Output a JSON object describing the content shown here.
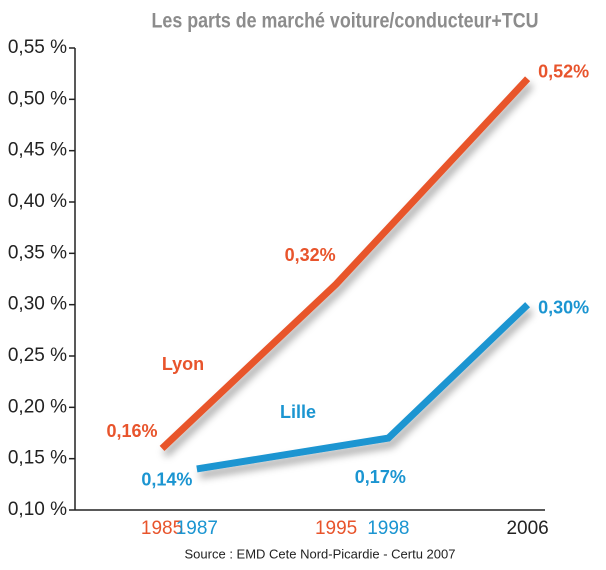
{
  "chart_data": {
    "type": "line",
    "title": "Les parts de marché voiture/conducteur+TCU",
    "source": "Source : EMD Cete Nord-Picardie - Certu 2007",
    "series": [
      {
        "name": "Lyon",
        "color": "#e8542c",
        "x": [
          1985,
          1995,
          2006
        ],
        "values": [
          0.16,
          0.32,
          0.52
        ],
        "value_labels": [
          "0,16%",
          "0,32%",
          "0,52%"
        ]
      },
      {
        "name": "Lille",
        "color": "#1b95d1",
        "x": [
          1987,
          1998,
          2006
        ],
        "values": [
          0.14,
          0.17,
          0.3
        ],
        "value_labels": [
          "0,14%",
          "0,17%",
          "0,30%"
        ]
      }
    ],
    "xlim": [
      1980,
      2007
    ],
    "xticks": [
      1985,
      1987,
      1995,
      1998,
      2006
    ],
    "xtick_colors": [
      "#e8542c",
      "#1b95d1",
      "#e8542c",
      "#1b95d1",
      "#222222"
    ],
    "ylim": [
      0.1,
      0.55
    ],
    "yticks": [
      {
        "value": 0.1,
        "label": "0,10 %"
      },
      {
        "value": 0.15,
        "label": "0,15 %"
      },
      {
        "value": 0.2,
        "label": "0,20 %"
      },
      {
        "value": 0.25,
        "label": "0,25 %"
      },
      {
        "value": 0.3,
        "label": "0,30 %"
      },
      {
        "value": 0.35,
        "label": "0,35 %"
      },
      {
        "value": 0.4,
        "label": "0,40 %"
      },
      {
        "value": 0.45,
        "label": "0,45 %"
      },
      {
        "value": 0.5,
        "label": "0,50 %"
      },
      {
        "value": 0.55,
        "label": "0,55 %"
      }
    ]
  }
}
